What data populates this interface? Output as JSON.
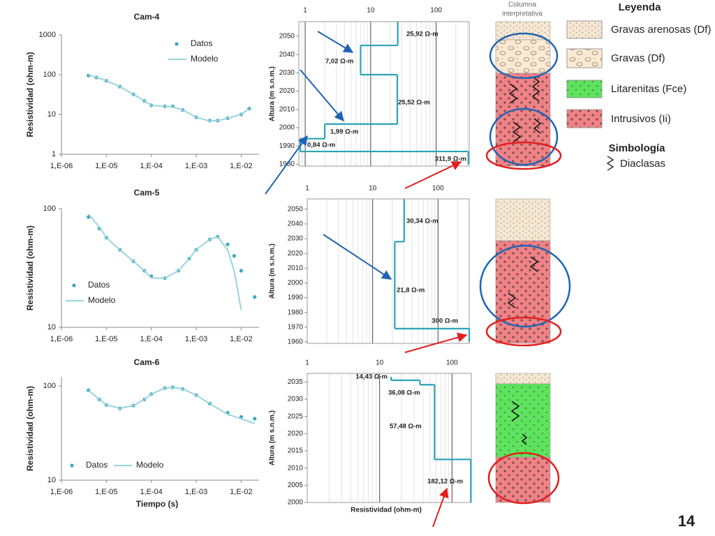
{
  "chart_data": [
    {
      "type": "line",
      "title": "Cam-4",
      "ylabel": "Resistividad (ohm-m)",
      "log_x": true,
      "log_y": true,
      "legend": "upper right",
      "x": [
        4e-06,
        6e-06,
        1e-05,
        2e-05,
        4e-05,
        7e-05,
        0.0001,
        0.0002,
        0.0003,
        0.0005,
        0.001,
        0.002,
        0.003,
        0.005,
        0.01,
        0.015
      ],
      "series": [
        {
          "name": "Datos",
          "color": "#3aa9c0",
          "style": "markers",
          "values": [
            95,
            85,
            70,
            50,
            32,
            22,
            17,
            16,
            16,
            13,
            8.5,
            7,
            7,
            8,
            10,
            14
          ]
        },
        {
          "name": "Modelo",
          "color": "#9ad3de",
          "style": "line",
          "values": [
            100,
            86,
            70,
            50,
            32,
            22,
            17,
            16,
            15.5,
            13,
            8.5,
            6.8,
            7,
            8,
            10,
            14
          ]
        }
      ],
      "xlim": [
        1e-06,
        0.025
      ],
      "xticks": [
        {
          "value": 1e-06,
          "label": "1,E-06"
        },
        {
          "value": 1e-05,
          "label": "1,E-05"
        },
        {
          "value": 0.0001,
          "label": "1,E-04"
        },
        {
          "value": 0.001,
          "label": "1,E-03"
        },
        {
          "value": 0.01,
          "label": "1,E-02"
        }
      ],
      "ylim": [
        1,
        1000
      ],
      "yticks": [
        1,
        10,
        100,
        1000
      ]
    },
    {
      "type": "line",
      "title": "Cam-5",
      "ylabel": "Resistividad (ohm-m)",
      "log_x": true,
      "log_y": true,
      "legend": "center left",
      "x": [
        4e-06,
        7e-06,
        1e-05,
        2e-05,
        4e-05,
        7e-05,
        0.0001,
        0.0002,
        0.0004,
        0.0007,
        0.001,
        0.002,
        0.003,
        0.005,
        0.007,
        0.01,
        0.02
      ],
      "series": [
        {
          "name": "Datos",
          "color": "#3aa9c0",
          "style": "markers",
          "values": [
            85,
            68,
            57,
            45,
            36,
            30,
            27,
            26,
            30,
            38,
            45,
            55,
            58,
            50,
            40,
            30,
            18
          ]
        },
        {
          "name": "Modelo",
          "color": "#9ad3de",
          "style": "line",
          "values": [
            90,
            70,
            57,
            45,
            36,
            30,
            26,
            26,
            30,
            38,
            45,
            55,
            58,
            45,
            30,
            14,
            null
          ]
        }
      ],
      "xlim": [
        1e-06,
        0.025
      ],
      "xticks": [
        {
          "value": 1e-06,
          "label": "1,E-06"
        },
        {
          "value": 1e-05,
          "label": "1,E-05"
        },
        {
          "value": 0.0001,
          "label": "1,E-04"
        },
        {
          "value": 0.001,
          "label": "1,E-03"
        },
        {
          "value": 0.01,
          "label": "1,E-02"
        }
      ],
      "ylim": [
        10,
        100
      ],
      "yticks": [
        10,
        100
      ]
    },
    {
      "type": "line",
      "title": "Cam-6",
      "ylabel": "Resistividad (ohm-m)",
      "xlabel": "Tiempo (s)",
      "log_x": true,
      "log_y": true,
      "legend": "lower left",
      "x": [
        4e-06,
        7e-06,
        1e-05,
        2e-05,
        4e-05,
        7e-05,
        0.0001,
        0.0002,
        0.0003,
        0.0005,
        0.001,
        0.002,
        0.005,
        0.01,
        0.02
      ],
      "series": [
        {
          "name": "Datos",
          "color": "#3aa9c0",
          "style": "markers",
          "values": [
            90,
            72,
            63,
            58,
            62,
            72,
            82,
            95,
            97,
            93,
            80,
            65,
            52,
            47,
            45
          ]
        },
        {
          "name": "Modelo",
          "color": "#9ad3de",
          "style": "line",
          "values": [
            90,
            72,
            63,
            58,
            62,
            72,
            82,
            95,
            97,
            93,
            80,
            65,
            50,
            45,
            40
          ]
        }
      ],
      "xlim": [
        1e-06,
        0.025
      ],
      "xticks": [
        {
          "value": 1e-06,
          "label": "1,E-06"
        },
        {
          "value": 1e-05,
          "label": "1,E-05"
        },
        {
          "value": 0.0001,
          "label": "1,E-04"
        },
        {
          "value": 0.001,
          "label": "1,E-03"
        },
        {
          "value": 0.01,
          "label": "1,E-02"
        }
      ],
      "ylim": [
        10,
        125
      ],
      "yticks": [
        10,
        100
      ]
    },
    {
      "type": "step",
      "ylabel": "Altura (m s.n.m.)",
      "color": "#2aa3b8",
      "log_x": true,
      "values": [
        25.92,
        7.02,
        25.52,
        1.99,
        0.84,
        311.9
      ],
      "value_labels": [
        "25,92 Ω-m",
        "7,02 Ω-m",
        "25,52 Ω-m",
        "1,99 Ω-m",
        "0,84 Ω-m",
        "311,9 Ω-m"
      ],
      "tops": [
        2058,
        2045,
        2029,
        2002,
        1994,
        1987
      ],
      "bottoms": [
        2045,
        2029,
        2002,
        1994,
        1987,
        1980
      ],
      "xlim": [
        0.8,
        320
      ],
      "xticks": [
        1,
        10,
        100
      ],
      "ylim": [
        1979,
        2058
      ],
      "yticks": [
        1980,
        1990,
        2000,
        2010,
        2020,
        2030,
        2040,
        2050
      ]
    },
    {
      "type": "step",
      "ylabel": "Altura (m s.n.m.)",
      "color": "#2aa3b8",
      "log_x": true,
      "values": [
        30.34,
        21.8,
        300
      ],
      "value_labels": [
        "30,34 Ω-m",
        "21,8 Ω-m",
        "300 Ω-m"
      ],
      "tops": [
        2057,
        2028,
        1969
      ],
      "bottoms": [
        2028,
        1969,
        1960
      ],
      "xlim": [
        1,
        300
      ],
      "xticks": [
        1,
        10,
        100
      ],
      "ylim": [
        1959,
        2057
      ],
      "yticks": [
        1960,
        1970,
        1980,
        1990,
        2000,
        2010,
        2020,
        2030,
        2040,
        2050
      ]
    },
    {
      "type": "step",
      "ylabel": "Altura (m s.n.m.)",
      "xlabel": "Resistividad (ohm-m)",
      "color": "#2aa3b8",
      "log_x": true,
      "values": [
        14.43,
        36.08,
        57.48,
        182.12
      ],
      "value_labels": [
        "14,43 Ω-m",
        "36,08 Ω-m",
        "57,48 Ω-m",
        "182,12 Ω-m"
      ],
      "tops": [
        2036.5,
        2035.5,
        2034.2,
        2012.5
      ],
      "bottoms": [
        2035.5,
        2034.2,
        2012.5,
        2000
      ],
      "xlim": [
        1,
        185
      ],
      "xticks": [
        1,
        10,
        100
      ],
      "ylim": [
        2000,
        2037.5
      ],
      "yticks": [
        2000,
        2005,
        2010,
        2015,
        2020,
        2025,
        2030,
        2035
      ]
    }
  ],
  "column_title": [
    "Columna",
    "interpretativa"
  ],
  "legend": {
    "title": "Leyenda",
    "items": [
      "Gravas arenosas (Df)",
      "Gravas (Df)",
      "Litarenitas (Fce)",
      "Intrusivos (Ii)"
    ],
    "symbol_title": "Simbología",
    "symbol": "Diaclasas"
  },
  "page_number": 14
}
